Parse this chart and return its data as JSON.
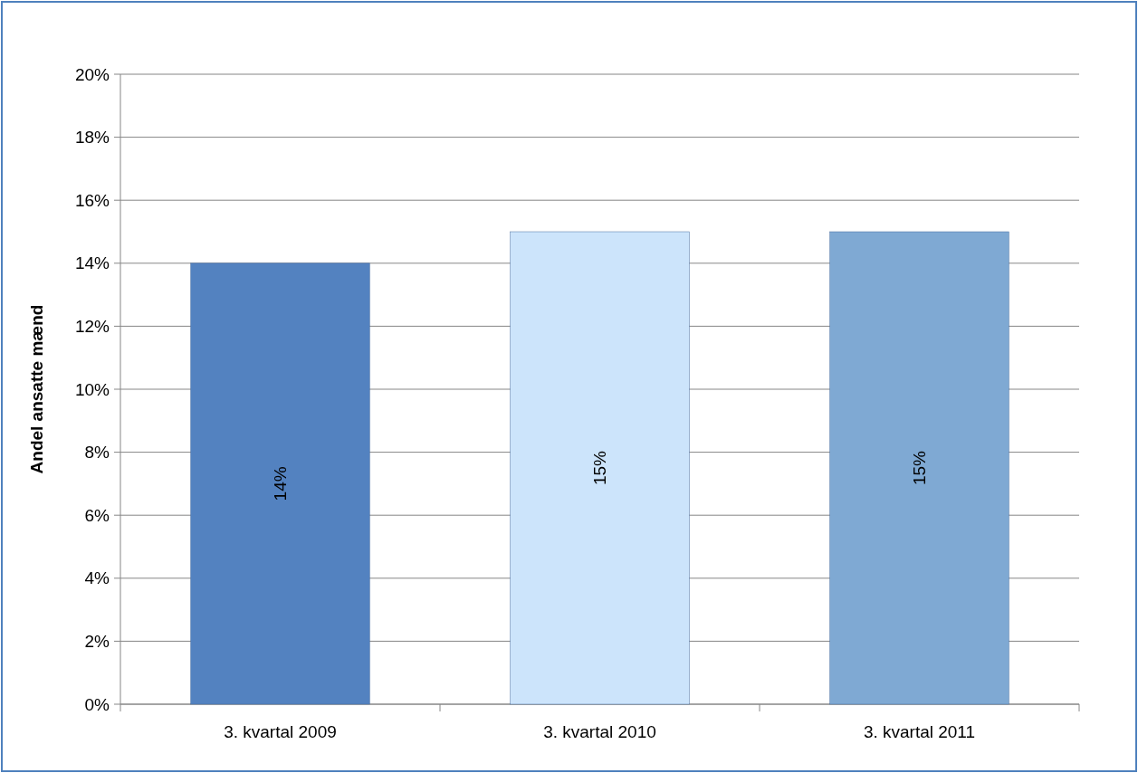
{
  "chart_data": {
    "type": "bar",
    "ylabel": "Andel ansatte mænd",
    "categories": [
      "3. kvartal 2009",
      "3. kvartal 2010",
      "3. kvartal 2011"
    ],
    "values": [
      14,
      15,
      15
    ],
    "colors": [
      "#5382c0",
      "#cce4fb",
      "#7fa9d3"
    ],
    "value_labels": [
      "14%",
      "15%",
      "15%"
    ],
    "ylim": [
      0,
      20
    ],
    "yticks": [
      {
        "value": 0,
        "label": "0%"
      },
      {
        "value": 2,
        "label": "2%"
      },
      {
        "value": 4,
        "label": "4%"
      },
      {
        "value": 6,
        "label": "6%"
      },
      {
        "value": 8,
        "label": "8%"
      },
      {
        "value": 10,
        "label": "10%"
      },
      {
        "value": 12,
        "label": "12%"
      },
      {
        "value": 14,
        "label": "14%"
      },
      {
        "value": 16,
        "label": "16%"
      },
      {
        "value": 18,
        "label": "18%"
      },
      {
        "value": 20,
        "label": "20%"
      }
    ],
    "grid": "y"
  }
}
